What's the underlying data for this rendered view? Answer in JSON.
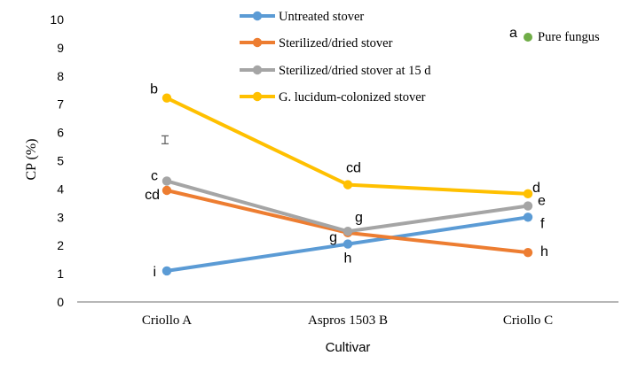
{
  "chart_data": {
    "type": "line",
    "xlabel": "Cultivar",
    "ylabel": "CP (%)",
    "categories": [
      "Criollo A",
      "Aspros 1503 B",
      "Criollo C"
    ],
    "ylim": [
      0,
      10
    ],
    "yticks": [
      0,
      1,
      2,
      3,
      4,
      5,
      6,
      7,
      8,
      9,
      10
    ],
    "grid": false,
    "legend": "top",
    "series": [
      {
        "name": "Untreated stover",
        "color": "#5B9BD5",
        "values": [
          1.1,
          2.05,
          3.0
        ],
        "labels": [
          "i",
          "h",
          "f"
        ]
      },
      {
        "name": "Sterilized/dried stover",
        "color": "#ED7D31",
        "values": [
          3.95,
          2.45,
          1.75
        ],
        "labels": [
          "cd",
          "g",
          "h"
        ]
      },
      {
        "name": "Sterilized/dried stover at 15 d",
        "color": "#A5A5A5",
        "values": [
          4.28,
          2.5,
          3.4
        ],
        "labels": [
          "c",
          "g",
          "e"
        ]
      },
      {
        "name": "G. lucidum-colonized stover",
        "color": "#FFC000",
        "values": [
          7.22,
          4.15,
          3.83
        ],
        "labels": [
          "b",
          "cd",
          "d"
        ]
      }
    ],
    "pure_fungus": {
      "name": "Pure fungus",
      "label": "a",
      "color": "#70AD47"
    },
    "error_bar": {
      "low": 5.6,
      "high": 5.88
    },
    "axis_color": "#8C8C8C"
  }
}
